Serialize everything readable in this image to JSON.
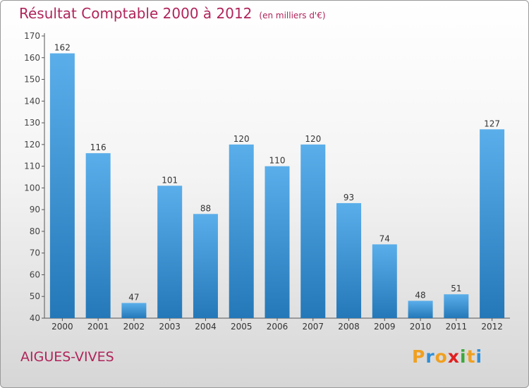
{
  "title": "Résultat Comptable 2000 à 2012",
  "subtitle": "(en milliers d'€)",
  "location": "AIGUES-VIVES",
  "brand": {
    "letters": [
      "P",
      "r",
      "o",
      "x",
      "i",
      "t",
      "i"
    ],
    "colors": [
      "#f0a020",
      "#2f8fd8",
      "#f0a020",
      "#e02020",
      "#3da83d",
      "#f0a020",
      "#2f8fd8"
    ]
  },
  "colors": {
    "bar_light": "#5aaeea",
    "bar_dark": "#2478b8",
    "accent": "#b0245a"
  },
  "chart_data": {
    "type": "bar",
    "title": "Résultat Comptable 2000 à 2012",
    "subtitle": "(en milliers d'€)",
    "categories": [
      "2000",
      "2001",
      "2002",
      "2003",
      "2004",
      "2005",
      "2006",
      "2007",
      "2008",
      "2009",
      "2010",
      "2011",
      "2012"
    ],
    "values": [
      162,
      116,
      47,
      101,
      88,
      120,
      110,
      120,
      93,
      74,
      48,
      51,
      127
    ],
    "ylim": [
      40,
      170
    ],
    "yticks": [
      40,
      50,
      60,
      70,
      80,
      90,
      100,
      110,
      120,
      130,
      140,
      150,
      160,
      170
    ],
    "grid": false,
    "legend": "none"
  }
}
